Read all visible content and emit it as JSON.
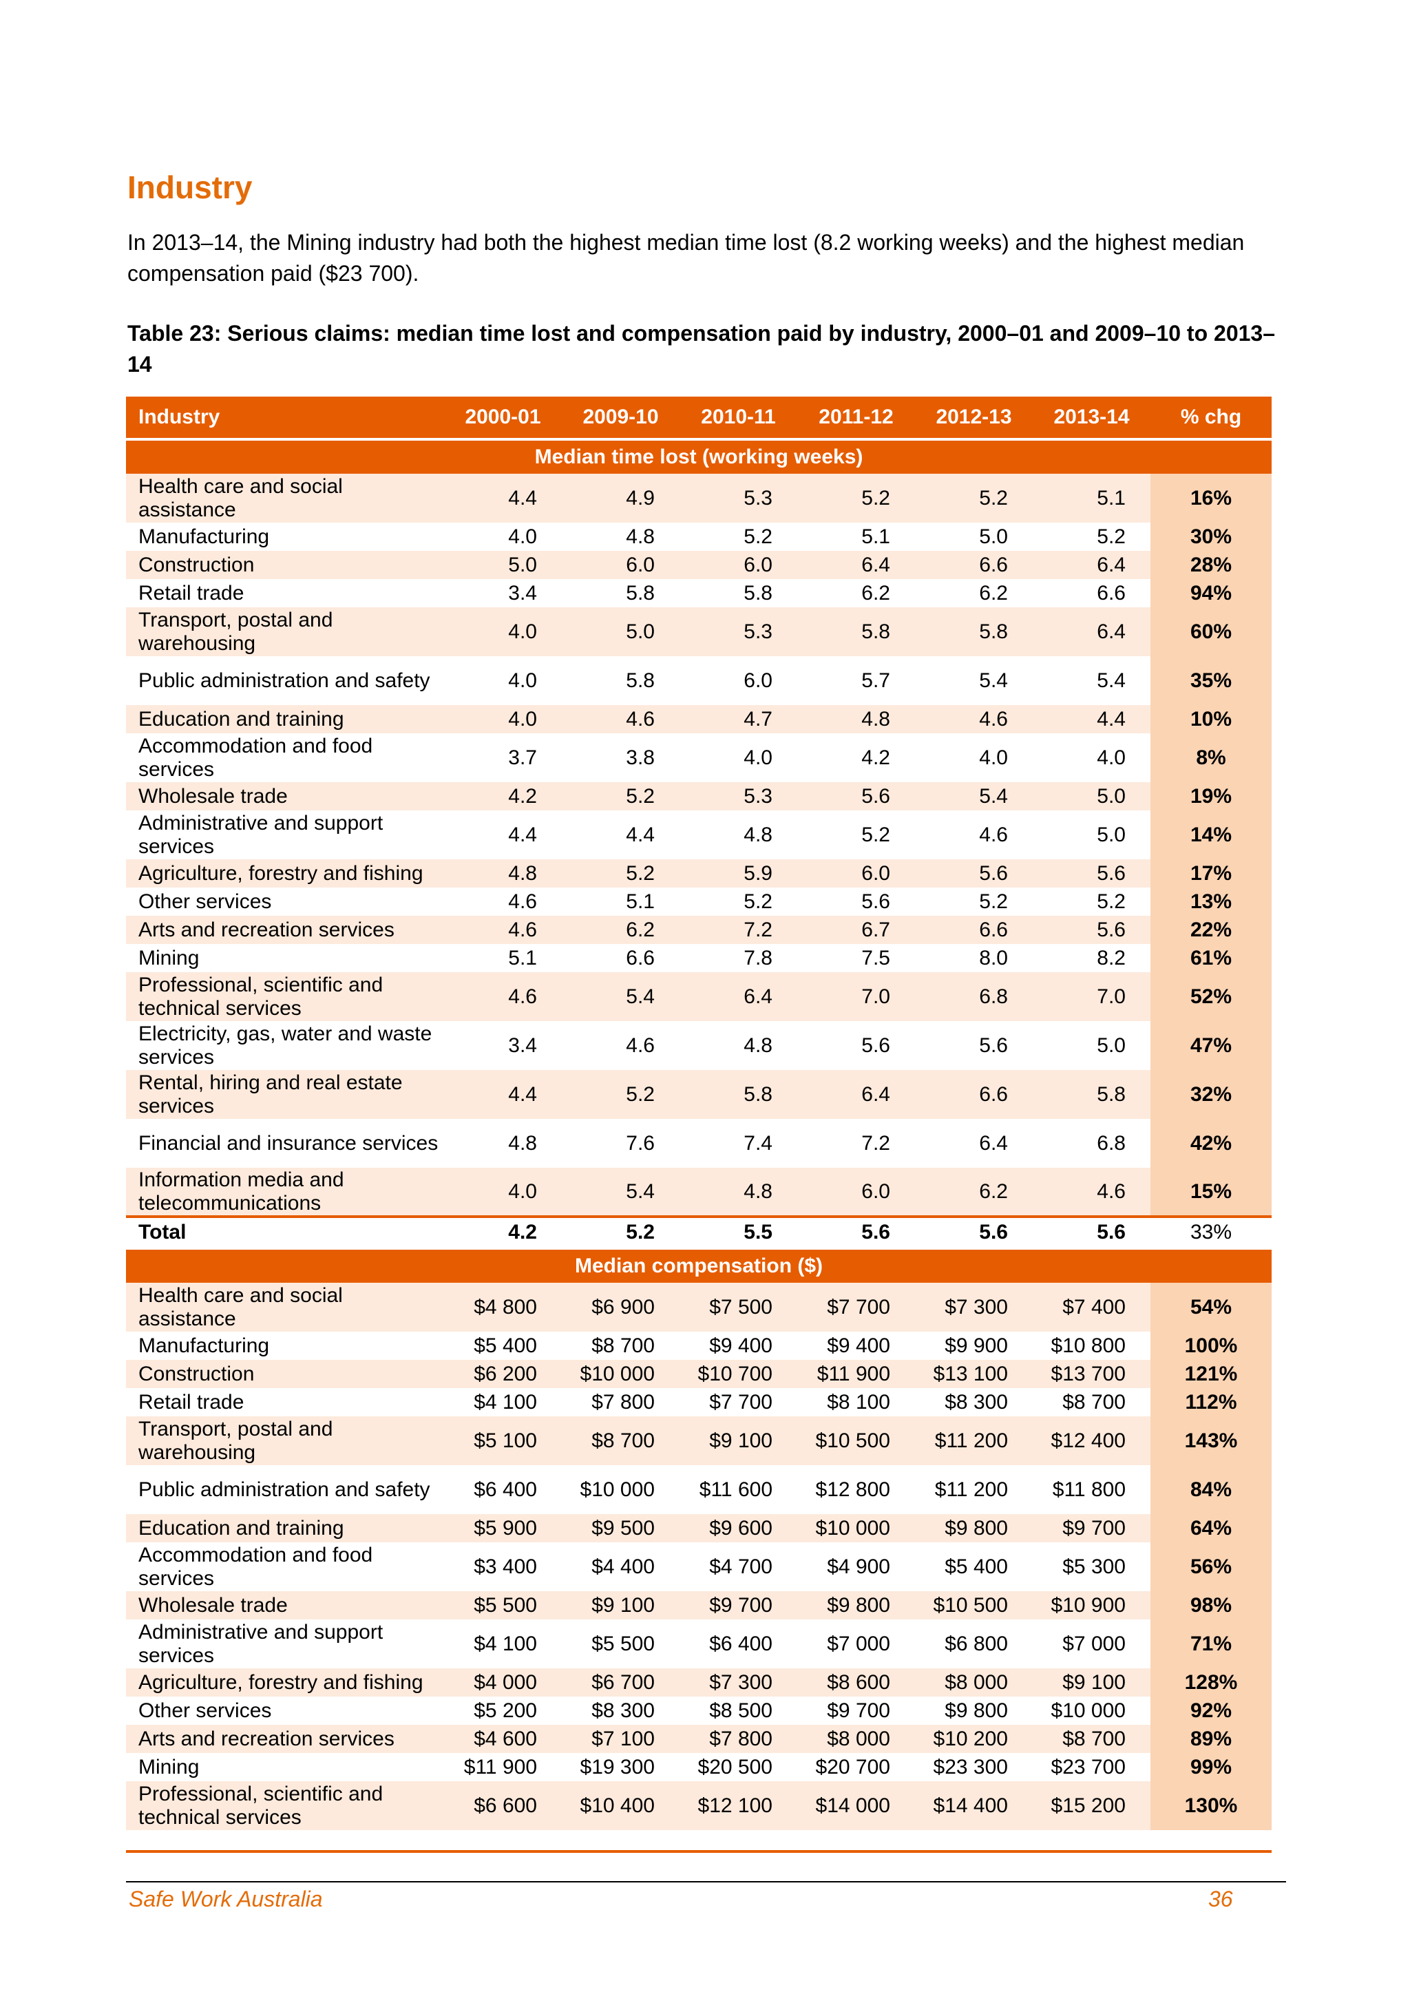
{
  "heading": "Industry",
  "intro": "In 2013–14, the Mining industry had both the highest median time lost (8.2 working weeks) and the highest median compensation paid ($23 700).",
  "caption": "Table 23: Serious claims: median time lost and compensation paid by industry, 2000–01 and 2009–10 to 2013–14",
  "table": {
    "headers": [
      "Industry",
      "2000-01",
      "2009-10",
      "2010-11",
      "2011-12",
      "2012-13",
      "2013-14",
      "% chg"
    ],
    "section1_title": "Median time lost (working weeks)",
    "section1_rows": [
      {
        "industry": "Health care and social assistance",
        "v": [
          "4.4",
          "4.9",
          "5.3",
          "5.2",
          "5.2",
          "5.1"
        ],
        "pct": "16%",
        "two_line": true
      },
      {
        "industry": "Manufacturing",
        "v": [
          "4.0",
          "4.8",
          "5.2",
          "5.1",
          "5.0",
          "5.2"
        ],
        "pct": "30%",
        "two_line": false
      },
      {
        "industry": "Construction",
        "v": [
          "5.0",
          "6.0",
          "6.0",
          "6.4",
          "6.6",
          "6.4"
        ],
        "pct": "28%",
        "two_line": false
      },
      {
        "industry": "Retail trade",
        "v": [
          "3.4",
          "5.8",
          "5.8",
          "6.2",
          "6.2",
          "6.6"
        ],
        "pct": "94%",
        "two_line": false
      },
      {
        "industry": "Transport, postal and warehousing",
        "v": [
          "4.0",
          "5.0",
          "5.3",
          "5.8",
          "5.8",
          "6.4"
        ],
        "pct": "60%",
        "two_line": true
      },
      {
        "industry": "Public administration and safety",
        "v": [
          "4.0",
          "5.8",
          "6.0",
          "5.7",
          "5.4",
          "5.4"
        ],
        "pct": "35%",
        "two_line": true
      },
      {
        "industry": "Education and training",
        "v": [
          "4.0",
          "4.6",
          "4.7",
          "4.8",
          "4.6",
          "4.4"
        ],
        "pct": "10%",
        "two_line": false
      },
      {
        "industry": "Accommodation and food services",
        "v": [
          "3.7",
          "3.8",
          "4.0",
          "4.2",
          "4.0",
          "4.0"
        ],
        "pct": "8%",
        "two_line": true
      },
      {
        "industry": "Wholesale trade",
        "v": [
          "4.2",
          "5.2",
          "5.3",
          "5.6",
          "5.4",
          "5.0"
        ],
        "pct": "19%",
        "two_line": false
      },
      {
        "industry": "Administrative and support services",
        "v": [
          "4.4",
          "4.4",
          "4.8",
          "5.2",
          "4.6",
          "5.0"
        ],
        "pct": "14%",
        "two_line": true
      },
      {
        "industry": "Agriculture, forestry and fishing",
        "v": [
          "4.8",
          "5.2",
          "5.9",
          "6.0",
          "5.6",
          "5.6"
        ],
        "pct": "17%",
        "two_line": false
      },
      {
        "industry": "Other services",
        "v": [
          "4.6",
          "5.1",
          "5.2",
          "5.6",
          "5.2",
          "5.2"
        ],
        "pct": "13%",
        "two_line": false
      },
      {
        "industry": "Arts and recreation services",
        "v": [
          "4.6",
          "6.2",
          "7.2",
          "6.7",
          "6.6",
          "5.6"
        ],
        "pct": "22%",
        "two_line": false
      },
      {
        "industry": "Mining",
        "v": [
          "5.1",
          "6.6",
          "7.8",
          "7.5",
          "8.0",
          "8.2"
        ],
        "pct": "61%",
        "two_line": false
      },
      {
        "industry": "Professional, scientific and technical services",
        "v": [
          "4.6",
          "5.4",
          "6.4",
          "7.0",
          "6.8",
          "7.0"
        ],
        "pct": "52%",
        "two_line": true
      },
      {
        "industry": "Electricity, gas, water and waste services",
        "v": [
          "3.4",
          "4.6",
          "4.8",
          "5.6",
          "5.6",
          "5.0"
        ],
        "pct": "47%",
        "two_line": true
      },
      {
        "industry": "Rental, hiring and real estate services",
        "v": [
          "4.4",
          "5.2",
          "5.8",
          "6.4",
          "6.6",
          "5.8"
        ],
        "pct": "32%",
        "two_line": true
      },
      {
        "industry": "Financial and insurance services",
        "v": [
          "4.8",
          "7.6",
          "7.4",
          "7.2",
          "6.4",
          "6.8"
        ],
        "pct": "42%",
        "two_line": true
      },
      {
        "industry": "Information media and telecommunications",
        "v": [
          "4.0",
          "5.4",
          "4.8",
          "6.0",
          "6.2",
          "4.6"
        ],
        "pct": "15%",
        "two_line": true
      }
    ],
    "total": {
      "industry": "Total",
      "v": [
        "4.2",
        "5.2",
        "5.5",
        "5.6",
        "5.6",
        "5.6"
      ],
      "pct": "33%"
    },
    "section2_title": "Median compensation ($)",
    "section2_rows": [
      {
        "industry": "Health care and social assistance",
        "v": [
          "$4 800",
          "$6 900",
          "$7 500",
          "$7 700",
          "$7 300",
          "$7 400"
        ],
        "pct": "54%",
        "two_line": true
      },
      {
        "industry": "Manufacturing",
        "v": [
          "$5 400",
          "$8 700",
          "$9 400",
          "$9 400",
          "$9 900",
          "$10 800"
        ],
        "pct": "100%",
        "two_line": false
      },
      {
        "industry": "Construction",
        "v": [
          "$6 200",
          "$10 000",
          "$10 700",
          "$11 900",
          "$13 100",
          "$13 700"
        ],
        "pct": "121%",
        "two_line": false
      },
      {
        "industry": "Retail trade",
        "v": [
          "$4 100",
          "$7 800",
          "$7 700",
          "$8 100",
          "$8 300",
          "$8 700"
        ],
        "pct": "112%",
        "two_line": false
      },
      {
        "industry": "Transport, postal and warehousing",
        "v": [
          "$5 100",
          "$8 700",
          "$9 100",
          "$10 500",
          "$11 200",
          "$12 400"
        ],
        "pct": "143%",
        "two_line": true
      },
      {
        "industry": "Public administration and safety",
        "v": [
          "$6 400",
          "$10 000",
          "$11 600",
          "$12 800",
          "$11 200",
          "$11 800"
        ],
        "pct": "84%",
        "two_line": true
      },
      {
        "industry": "Education and training",
        "v": [
          "$5 900",
          "$9 500",
          "$9 600",
          "$10 000",
          "$9 800",
          "$9 700"
        ],
        "pct": "64%",
        "two_line": false
      },
      {
        "industry": "Accommodation and food services",
        "v": [
          "$3 400",
          "$4 400",
          "$4 700",
          "$4 900",
          "$5 400",
          "$5 300"
        ],
        "pct": "56%",
        "two_line": true
      },
      {
        "industry": "Wholesale trade",
        "v": [
          "$5 500",
          "$9 100",
          "$9 700",
          "$9 800",
          "$10 500",
          "$10 900"
        ],
        "pct": "98%",
        "two_line": false
      },
      {
        "industry": "Administrative and support services",
        "v": [
          "$4 100",
          "$5 500",
          "$6 400",
          "$7 000",
          "$6 800",
          "$7 000"
        ],
        "pct": "71%",
        "two_line": true
      },
      {
        "industry": "Agriculture, forestry and fishing",
        "v": [
          "$4 000",
          "$6 700",
          "$7 300",
          "$8 600",
          "$8 000",
          "$9 100"
        ],
        "pct": "128%",
        "two_line": false
      },
      {
        "industry": "Other services",
        "v": [
          "$5 200",
          "$8 300",
          "$8 500",
          "$9 700",
          "$9 800",
          "$10 000"
        ],
        "pct": "92%",
        "two_line": false
      },
      {
        "industry": "Arts and recreation services",
        "v": [
          "$4 600",
          "$7 100",
          "$7 800",
          "$8 000",
          "$10 200",
          "$8 700"
        ],
        "pct": "89%",
        "two_line": false
      },
      {
        "industry": "Mining",
        "v": [
          "$11 900",
          "$19 300",
          "$20 500",
          "$20 700",
          "$23 300",
          "$23 700"
        ],
        "pct": "99%",
        "two_line": false
      },
      {
        "industry": "Professional, scientific and technical services",
        "v": [
          "$6 600",
          "$10 400",
          "$12 100",
          "$14 000",
          "$14 400",
          "$15 200"
        ],
        "pct": "130%",
        "two_line": true
      }
    ]
  },
  "footer": {
    "left": "Safe Work Australia",
    "right": "36"
  }
}
